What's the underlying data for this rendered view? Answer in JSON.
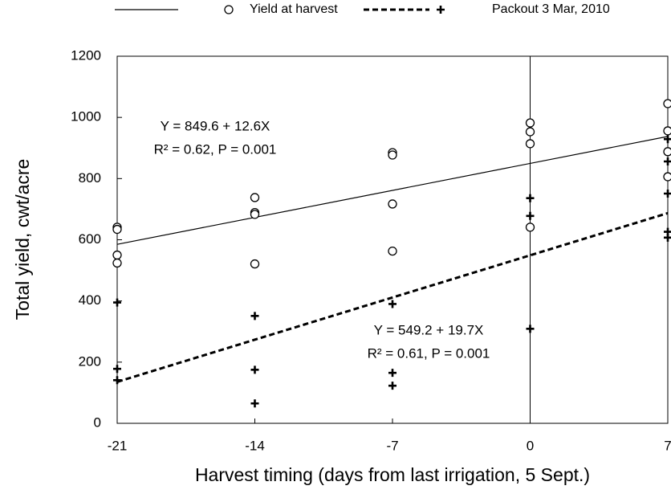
{
  "chart_data": {
    "type": "scatter",
    "x_label": "Harvest timing (days from last irrigation, 5 Sept.)",
    "y_label": "Total yield, cwt/acre",
    "xlim": [
      -21,
      7
    ],
    "xticks": [
      -21,
      -14,
      -7,
      0,
      7
    ],
    "ylim": [
      0,
      1200
    ],
    "yticks": [
      0,
      200,
      400,
      600,
      800,
      1000,
      1200
    ],
    "color": "#000000",
    "series": [
      {
        "name": "Yield at harvest",
        "marker": "circle",
        "line_style": "solid",
        "x": [
          -21,
          -21,
          -21,
          -21,
          -14,
          -14,
          -14,
          -14,
          -7,
          -7,
          -7,
          -7,
          0,
          0,
          0,
          0,
          7,
          7,
          7,
          7
        ],
        "values": [
          641,
          634,
          550,
          524,
          738,
          689,
          683,
          521,
          885,
          877,
          717,
          563,
          982,
          953,
          914,
          641,
          1045,
          956,
          888,
          806
        ],
        "fit_x": [
          -21,
          7
        ],
        "fit": [
          585.0,
          937.8
        ]
      },
      {
        "name": "Packout 3 Mar, 2010",
        "marker": "plus",
        "line_style": "dashed",
        "x": [
          -21,
          -21,
          -21,
          -14,
          -14,
          -14,
          -7,
          -7,
          -7,
          0,
          0,
          0,
          7,
          7,
          7,
          7,
          7
        ],
        "values": [
          395,
          178,
          141,
          351,
          175,
          65,
          390,
          165,
          123,
          736,
          678,
          309,
          929,
          856,
          751,
          626,
          607
        ],
        "fit_x": [
          -21,
          7
        ],
        "fit": [
          135.5,
          687.1
        ]
      }
    ],
    "annotations": [
      {
        "lines": [
          "Y = 849.6 + 12.6X",
          "R² = 0.62, P = 0.001"
        ]
      },
      {
        "lines": [
          "Y = 549.2 + 19.7X",
          "R² = 0.61, P = 0.001"
        ]
      }
    ],
    "reference_line_x": 0
  }
}
